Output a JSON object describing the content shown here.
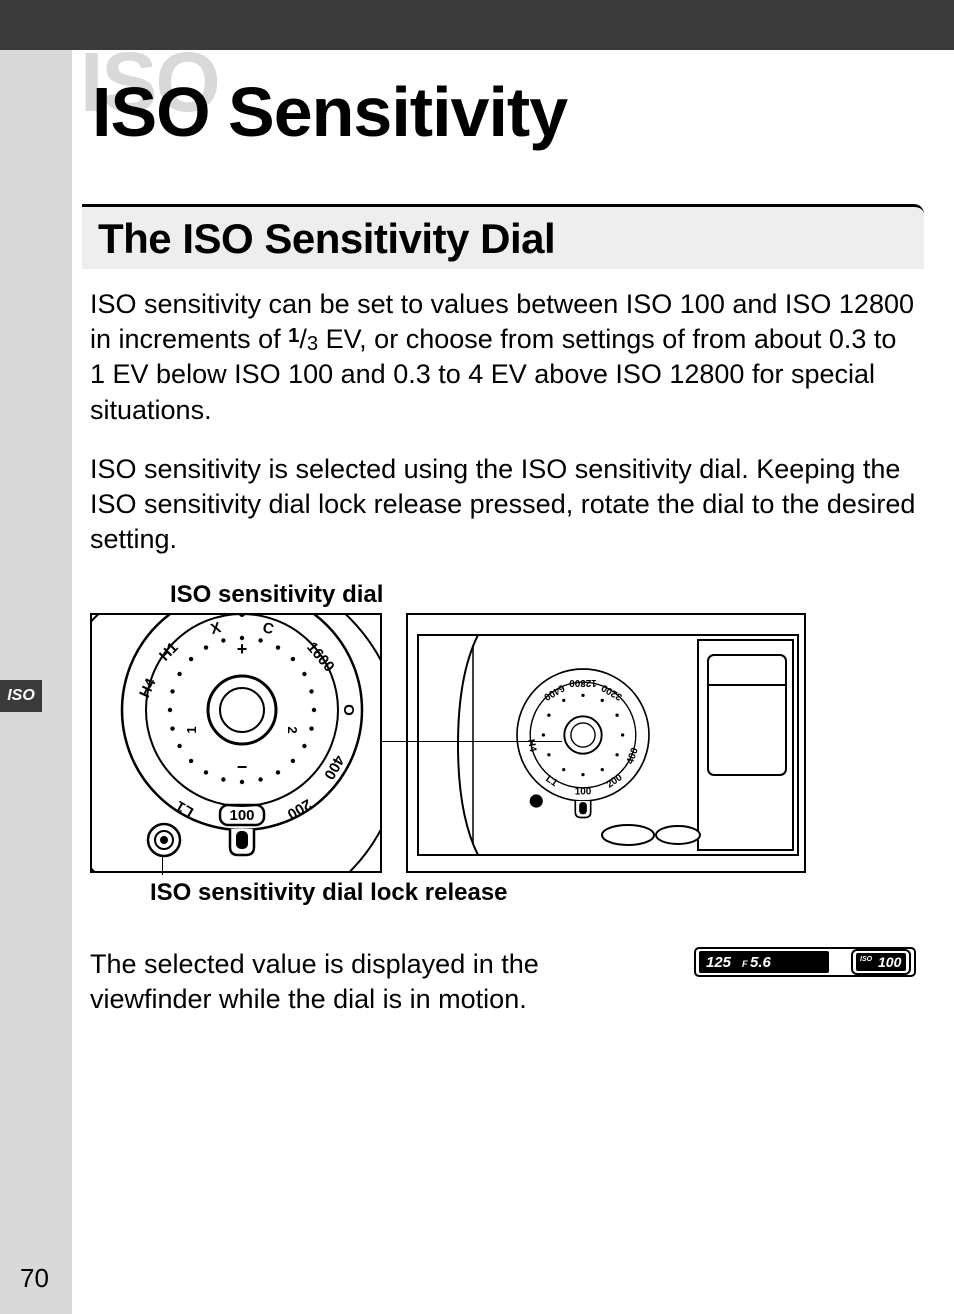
{
  "page": {
    "number": "70",
    "side_tab": "ISO"
  },
  "title": {
    "ghost": "ISO",
    "main": "ISO Sensitivity"
  },
  "section": {
    "heading": "The ISO Sensitivity Dial"
  },
  "paragraphs": {
    "p1_a": "ISO sensitivity can be set to values between ISO 100 and ISO 12800 in increments of ",
    "p1_frac_num": "1",
    "p1_frac_den": "3",
    "p1_b": " EV, or choose from settings of from about 0.3 to 1 EV below ISO 100 and 0.3 to 4 EV above ISO 12800 for special situations.",
    "p2": "ISO sensitivity is selected using the ISO sensitivity dial. Keeping the ISO sensitivity dial lock release pressed, rotate the dial to the desired setting.",
    "p3": "The selected value is displayed in the viewfinder while the dial is in motion."
  },
  "diagram": {
    "label_top": "ISO sensitivity dial",
    "label_bottom": "ISO sensitivity dial lock release",
    "dial_values": [
      "H4",
      "H1",
      "X",
      "C",
      "1600",
      "O",
      "400",
      "200",
      "100",
      "L1"
    ],
    "small_dial_values": [
      "3200",
      "6400",
      "12800",
      "H4",
      "L1",
      "100",
      "200",
      "400"
    ],
    "dial_indicator_value": "100",
    "colors": {
      "stroke": "#000000",
      "fill": "#ffffff",
      "bg": "#ffffff"
    }
  },
  "viewfinder": {
    "shutter": "125",
    "aperture_prefix": "F",
    "aperture": "5.6",
    "iso_label": "ISO",
    "iso_value": "100",
    "colors": {
      "bg": "#000000",
      "text": "#ffffff",
      "border": "#000000",
      "outer": "#ffffff"
    }
  }
}
